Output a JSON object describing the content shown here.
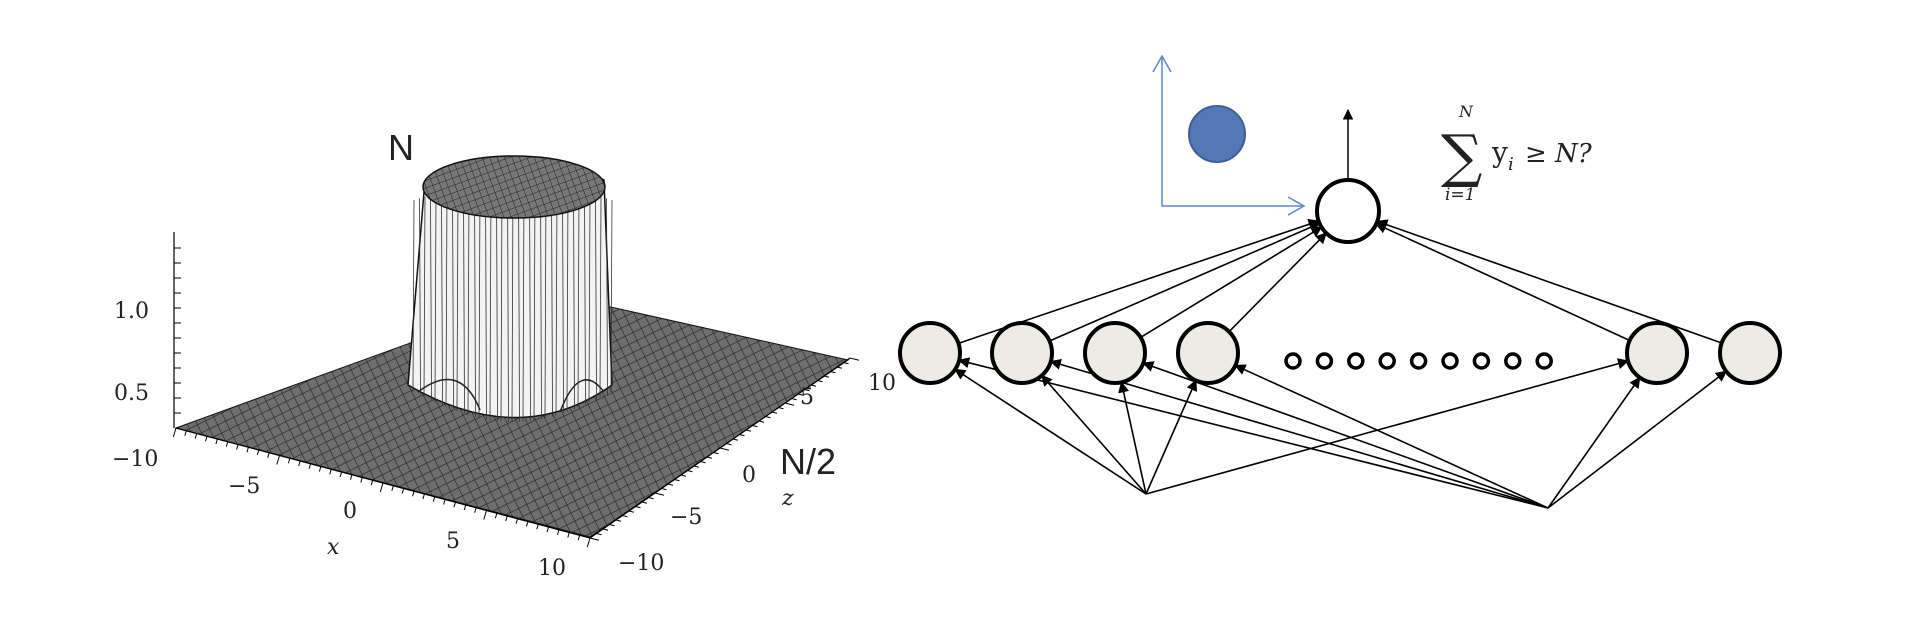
{
  "surface_plot": {
    "peak_label": "N",
    "half_label": "N/2",
    "vertical_axis": {
      "ticks": [
        "1.0",
        "0.5"
      ]
    },
    "x_axis": {
      "label": "x",
      "ticks": [
        "−10",
        "−5",
        "0",
        "5",
        "10"
      ]
    },
    "z_axis": {
      "label": "z",
      "ticks": [
        "−10",
        "−5",
        "0",
        "5",
        "10"
      ]
    }
  },
  "network": {
    "hidden_ellipsis_dots": 9,
    "output_condition": {
      "sum_upper": "N",
      "sum_lower": "i=1",
      "summand": "y",
      "summand_sub": "i",
      "relation": "≥ N?"
    }
  },
  "colors": {
    "hidden_node_fill": "#ecebe4",
    "inset_dot_fill": "#5478b5",
    "inset_axes_stroke": "#5b86c9",
    "stroke": "#000000"
  }
}
